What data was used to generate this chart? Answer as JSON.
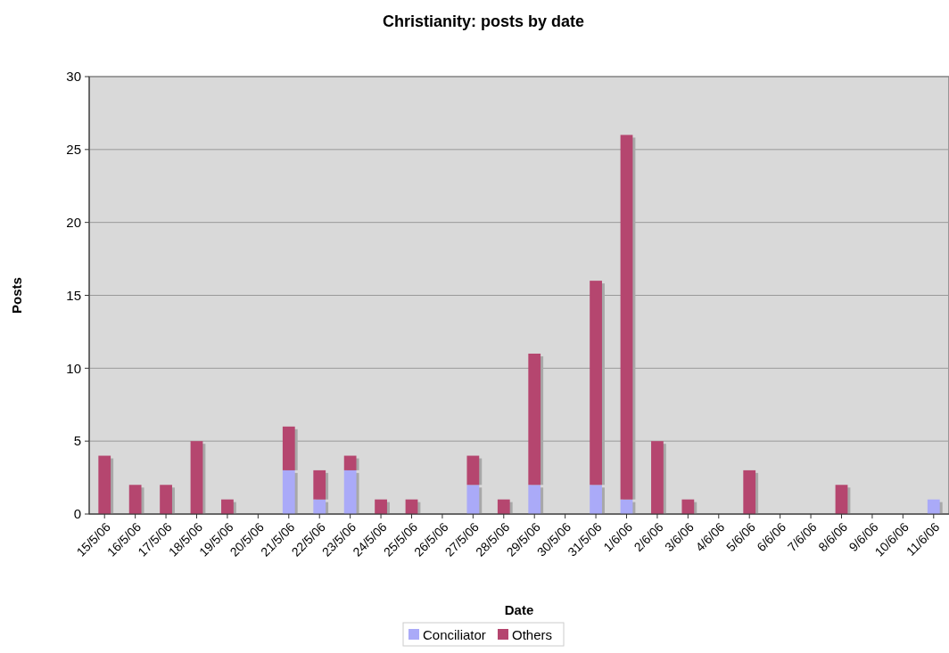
{
  "chart_data": {
    "type": "bar",
    "title": "Christianity: posts by date",
    "xlabel": "Date",
    "ylabel": "Posts",
    "categories": [
      "15/5/06",
      "16/5/06",
      "17/5/06",
      "18/5/06",
      "19/5/06",
      "20/5/06",
      "21/5/06",
      "22/5/06",
      "23/5/06",
      "24/5/06",
      "25/5/06",
      "26/5/06",
      "27/5/06",
      "28/5/06",
      "29/5/06",
      "30/5/06",
      "31/5/06",
      "1/6/06",
      "2/6/06",
      "3/6/06",
      "4/6/06",
      "5/6/06",
      "6/6/06",
      "7/6/06",
      "8/6/06",
      "9/6/06",
      "10/6/06",
      "11/6/06"
    ],
    "series": [
      {
        "name": "Conciliator",
        "color": "#aaaaf8",
        "values": [
          0,
          0,
          0,
          0,
          0,
          0,
          3,
          1,
          3,
          0,
          0,
          0,
          2,
          0,
          2,
          0,
          2,
          1,
          0,
          0,
          0,
          0,
          0,
          0,
          0,
          0,
          0,
          1
        ]
      },
      {
        "name": "Others",
        "color": "#b5466f",
        "values": [
          4,
          2,
          2,
          5,
          1,
          0,
          3,
          2,
          1,
          1,
          1,
          0,
          2,
          1,
          9,
          0,
          14,
          25,
          5,
          1,
          0,
          3,
          0,
          0,
          2,
          0,
          0,
          0
        ]
      }
    ],
    "stacked": true,
    "ylim": [
      0,
      30
    ],
    "yticks": [
      0,
      5,
      10,
      15,
      20,
      25,
      30
    ],
    "grid": "y",
    "legend": "bottom"
  }
}
